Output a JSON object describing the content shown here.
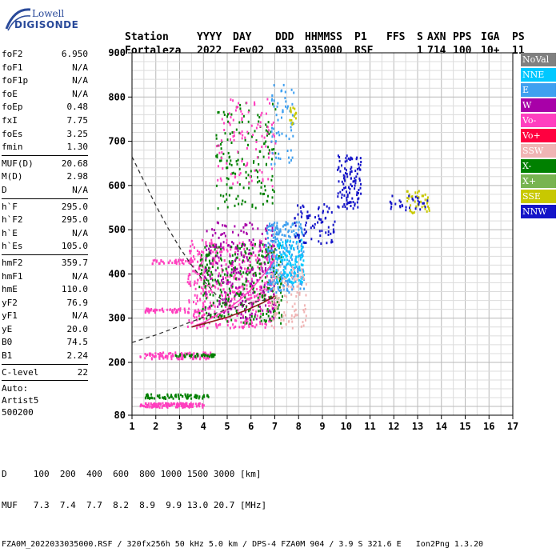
{
  "logo": {
    "line1": "Lowell",
    "line2": "DIGISONDE"
  },
  "header": {
    "labels": [
      "Station",
      "YYYY",
      "DAY",
      "DDD",
      "HHMMSS",
      "P1",
      "FFS",
      "S",
      "AXN",
      "PPS",
      "IGA",
      "PS"
    ],
    "values": [
      "Fortaleza",
      "2022",
      "Fev02",
      "033",
      "035000",
      "RSF",
      "",
      "1",
      "714",
      "100",
      "10+",
      "11"
    ]
  },
  "parameters": [
    {
      "name": "foF2",
      "value": "6.950"
    },
    {
      "name": "foF1",
      "value": "N/A"
    },
    {
      "name": "foF1p",
      "value": "N/A"
    },
    {
      "name": "foE",
      "value": "N/A"
    },
    {
      "name": "foEp",
      "value": "0.48"
    },
    {
      "name": "fxI",
      "value": "7.75"
    },
    {
      "name": "foEs",
      "value": "3.25"
    },
    {
      "name": "fmin",
      "value": "1.30"
    },
    {
      "sep": true
    },
    {
      "name": "MUF(D)",
      "value": "20.68"
    },
    {
      "name": "M(D)",
      "value": "2.98"
    },
    {
      "name": "D",
      "value": "N/A"
    },
    {
      "sep": true
    },
    {
      "name": "h`F",
      "value": "295.0"
    },
    {
      "name": "h`F2",
      "value": "295.0"
    },
    {
      "name": "h`E",
      "value": "N/A"
    },
    {
      "name": "h`Es",
      "value": "105.0"
    },
    {
      "sep": true
    },
    {
      "name": "hmF2",
      "value": "359.7"
    },
    {
      "name": "hmF1",
      "value": "N/A"
    },
    {
      "name": "hmE",
      "value": "110.0"
    },
    {
      "name": "yF2",
      "value": "76.9"
    },
    {
      "name": "yF1",
      "value": "N/A"
    },
    {
      "name": "yE",
      "value": "20.0"
    },
    {
      "name": "B0",
      "value": "74.5"
    },
    {
      "name": "B1",
      "value": "2.24"
    },
    {
      "sep": true
    },
    {
      "name": "C-level",
      "value": "22"
    },
    {
      "sep": true
    },
    {
      "text": "Auto:"
    },
    {
      "text": "Artist5"
    },
    {
      "text": "500200"
    }
  ],
  "legend": [
    {
      "label": "NoVal",
      "color": "#808080"
    },
    {
      "label": "NNE",
      "color": "#00c8ff"
    },
    {
      "label": "E",
      "color": "#3fa0f0"
    },
    {
      "label": "W",
      "color": "#a800a8"
    },
    {
      "label": "Vo-",
      "color": "#ff3fbf"
    },
    {
      "label": "Vo+",
      "color": "#ff0040"
    },
    {
      "label": "SSW",
      "color": "#f0b4b4"
    },
    {
      "label": "X-",
      "color": "#008000"
    },
    {
      "label": "X+",
      "color": "#78b450"
    },
    {
      "label": "SSE",
      "color": "#c8c800"
    },
    {
      "label": "NNW",
      "color": "#1414c8"
    }
  ],
  "footer": {
    "line1": "D     100  200  400  600  800 1000 1500 3000 [km]",
    "line2": "MUF   7.3  7.4  7.7  8.2  8.9  9.9 13.0 20.7 [MHz]",
    "line3": "FZA0M_2022033035000.RSF / 320fx256h 50 kHz 5.0 km / DPS-4 FZA0M 904 / 3.9 S 321.6 E   Ion2Png 1.3.20"
  },
  "chart_data": {
    "type": "scatter",
    "title": "",
    "xlabel": "",
    "ylabel": "",
    "xlim": [
      1,
      17
    ],
    "ylim": [
      80,
      900
    ],
    "xticks": [
      1,
      2,
      3,
      4,
      5,
      6,
      7,
      8,
      9,
      10,
      11,
      12,
      13,
      14,
      15,
      16,
      17
    ],
    "yticks": [
      80,
      200,
      300,
      400,
      500,
      600,
      700,
      800,
      900
    ],
    "grid": true,
    "legend_position": "right",
    "clusters": [
      {
        "name": "Es",
        "color": "#ff3fbf",
        "x": [
          1.3,
          4.0
        ],
        "y": [
          100,
          110
        ],
        "n": 140
      },
      {
        "name": "Es2",
        "color": "#008000",
        "x": [
          1.5,
          4.2
        ],
        "y": [
          120,
          130
        ],
        "n": 70
      },
      {
        "name": "Es-ret",
        "color": "#ff3fbf",
        "x": [
          1.3,
          4.3
        ],
        "y": [
          210,
          225
        ],
        "n": 110
      },
      {
        "name": "Es-ret2",
        "color": "#008000",
        "x": [
          2.8,
          4.5
        ],
        "y": [
          215,
          222
        ],
        "n": 40
      },
      {
        "name": "Es-3",
        "color": "#ff3fbf",
        "x": [
          1.5,
          4.0
        ],
        "y": [
          315,
          325
        ],
        "n": 60
      },
      {
        "name": "Es-4",
        "color": "#ff3fbf",
        "x": [
          1.8,
          3.5
        ],
        "y": [
          425,
          435
        ],
        "n": 40
      },
      {
        "name": "F-main-o",
        "color": "#ff3fbf",
        "x": [
          3.3,
          7.0
        ],
        "y": [
          280,
          480
        ],
        "n": 500
      },
      {
        "name": "F-main-x",
        "color": "#008000",
        "x": [
          3.8,
          7.3
        ],
        "y": [
          290,
          470
        ],
        "n": 320
      },
      {
        "name": "F-W",
        "color": "#a800a8",
        "x": [
          4.0,
          7.0
        ],
        "y": [
          300,
          520
        ],
        "n": 220
      },
      {
        "name": "F-E",
        "color": "#3fa0f0",
        "x": [
          6.6,
          8.2
        ],
        "y": [
          360,
          520
        ],
        "n": 260
      },
      {
        "name": "F-NNE",
        "color": "#00c8ff",
        "x": [
          7.0,
          8.2
        ],
        "y": [
          380,
          480
        ],
        "n": 120
      },
      {
        "name": "F-SSW",
        "color": "#f0b4b4",
        "x": [
          6.8,
          8.3
        ],
        "y": [
          280,
          420
        ],
        "n": 100
      },
      {
        "name": "F-NNW",
        "color": "#1414c8",
        "x": [
          7.8,
          9.5
        ],
        "y": [
          470,
          560
        ],
        "n": 80
      },
      {
        "name": "spread-high",
        "color": "#008000",
        "x": [
          4.5,
          7.0
        ],
        "y": [
          550,
          790
        ],
        "n": 150
      },
      {
        "name": "spread-high-o",
        "color": "#ff3fbf",
        "x": [
          4.5,
          7.0
        ],
        "y": [
          600,
          800
        ],
        "n": 100
      },
      {
        "name": "spread-high-e",
        "color": "#3fa0f0",
        "x": [
          6.8,
          7.8
        ],
        "y": [
          650,
          830
        ],
        "n": 60
      },
      {
        "name": "spread-sse",
        "color": "#c8c800",
        "x": [
          7.6,
          7.9
        ],
        "y": [
          740,
          780
        ],
        "n": 15
      },
      {
        "name": "NNW-10",
        "color": "#1414c8",
        "x": [
          9.6,
          10.6
        ],
        "y": [
          550,
          670
        ],
        "n": 110
      },
      {
        "name": "SSE-13",
        "color": "#c8c800",
        "x": [
          12.5,
          13.5
        ],
        "y": [
          540,
          590
        ],
        "n": 40
      },
      {
        "name": "NNW-12",
        "color": "#1414c8",
        "x": [
          11.8,
          13.4
        ],
        "y": [
          545,
          580
        ],
        "n": 30
      }
    ],
    "traces": [
      {
        "name": "O-trace",
        "color": "#ff3fbf",
        "x": [
          3.5,
          4.0,
          4.5,
          5.0,
          5.5,
          6.0,
          6.4,
          6.7,
          6.95
        ],
        "y": [
          280,
          290,
          305,
          320,
          340,
          365,
          390,
          410,
          430
        ]
      },
      {
        "name": "X-trace",
        "color": "#8b1a1a",
        "x": [
          3.5,
          4.2,
          5.0,
          5.8,
          6.5,
          7.0
        ],
        "y": [
          280,
          290,
          302,
          318,
          335,
          350
        ]
      },
      {
        "name": "profile-dashed-lower",
        "color": "#333333",
        "dashed": true,
        "x": [
          1.0,
          2.0,
          3.0,
          4.0,
          5.0,
          6.0,
          6.95
        ],
        "y": [
          245,
          262,
          282,
          302,
          320,
          335,
          345
        ]
      },
      {
        "name": "profile-dashed-upper",
        "color": "#333333",
        "dashed": true,
        "x": [
          1.0,
          1.5,
          2.0,
          2.5,
          3.0,
          3.5,
          4.0,
          4.5,
          5.0
        ],
        "y": [
          665,
          610,
          555,
          505,
          460,
          420,
          385,
          355,
          330
        ]
      }
    ]
  }
}
